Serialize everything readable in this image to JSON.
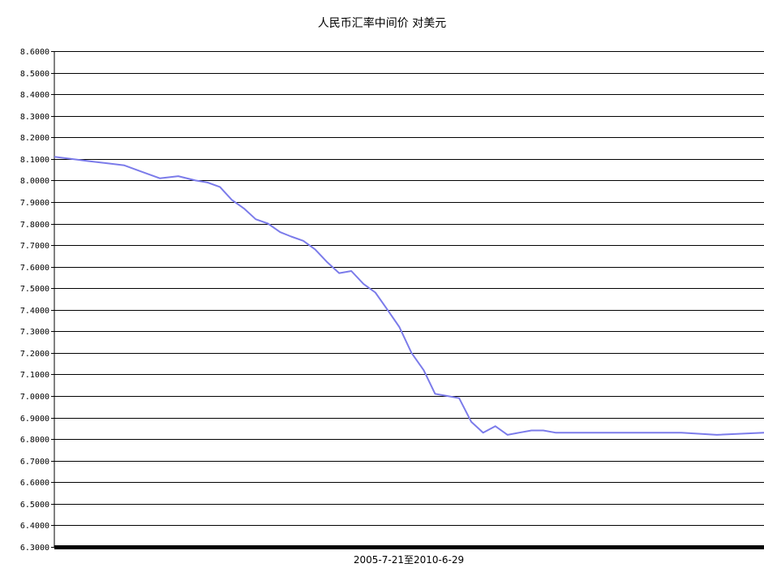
{
  "chart_data": {
    "type": "line",
    "title": "人民币汇率中间价 对美元",
    "xlabel": "2005-7-21至2010-6-29",
    "ylabel": "",
    "ylim": [
      6.3,
      8.6
    ],
    "grid": true,
    "yticks": [
      "8.6000",
      "8.5000",
      "8.4000",
      "8.3000",
      "8.2000",
      "8.1000",
      "8.0000",
      "7.9000",
      "7.8000",
      "7.7000",
      "7.6000",
      "7.5000",
      "7.4000",
      "7.3000",
      "7.2000",
      "7.1000",
      "7.0000",
      "6.9000",
      "6.8000",
      "6.7000",
      "6.6000",
      "6.5000",
      "6.4000",
      "6.3000"
    ],
    "x_range": [
      "2005-07-21",
      "2010-06-29"
    ],
    "series": [
      {
        "color": "#7b7bea",
        "x": [
          "2005-07-21",
          "2005-09-01",
          "2005-10-15",
          "2005-12-01",
          "2006-01-15",
          "2006-03-01",
          "2006-04-15",
          "2006-06-01",
          "2006-07-15",
          "2006-08-15",
          "2006-09-15",
          "2006-10-15",
          "2006-11-15",
          "2006-12-15",
          "2007-01-15",
          "2007-02-15",
          "2007-03-15",
          "2007-04-15",
          "2007-05-15",
          "2007-06-15",
          "2007-07-15",
          "2007-08-15",
          "2007-09-15",
          "2007-10-15",
          "2007-11-15",
          "2007-12-15",
          "2008-01-15",
          "2008-02-15",
          "2008-03-15",
          "2008-04-15",
          "2008-05-15",
          "2008-06-15",
          "2008-07-15",
          "2008-08-15",
          "2008-09-15",
          "2008-10-15",
          "2008-11-15",
          "2008-12-15",
          "2009-01-15",
          "2009-03-01",
          "2009-06-01",
          "2009-09-01",
          "2009-12-01",
          "2010-03-01",
          "2010-06-29"
        ],
        "values": [
          8.11,
          8.1,
          8.09,
          8.08,
          8.07,
          8.04,
          8.01,
          8.02,
          8.0,
          7.99,
          7.97,
          7.91,
          7.87,
          7.82,
          7.8,
          7.76,
          7.74,
          7.72,
          7.68,
          7.62,
          7.57,
          7.58,
          7.52,
          7.48,
          7.4,
          7.32,
          7.2,
          7.12,
          7.01,
          7.0,
          6.99,
          6.88,
          6.83,
          6.86,
          6.82,
          6.83,
          6.84,
          6.84,
          6.83,
          6.83,
          6.83,
          6.83,
          6.83,
          6.82,
          6.83
        ]
      }
    ]
  }
}
